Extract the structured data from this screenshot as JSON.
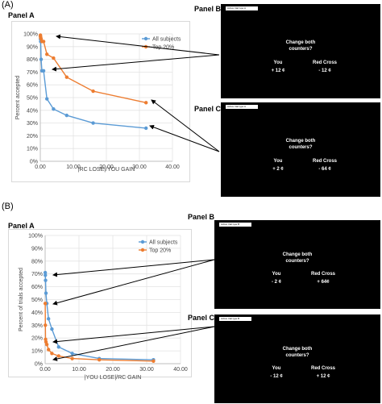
{
  "sections": [
    {
      "label": "(A)",
      "panel_a_label": "Panel A",
      "panel_b_label": "Panel B",
      "panel_c_label": "Panel C",
      "screen_b": {
        "tab": "Active trial type A",
        "question_line1": "Change both",
        "question_line2": "counters?",
        "left_name": "You",
        "right_name": "Red Cross",
        "left_value": "+ 12 ¢",
        "right_value": "- 12 ¢"
      },
      "screen_c": {
        "tab": "Active trial type A",
        "question_line1": "Change both",
        "question_line2": "counters?",
        "left_name": "You",
        "right_name": "Red Cross",
        "left_value": "+ 2 ¢",
        "right_value": "- 64 ¢"
      }
    },
    {
      "label": "(B)",
      "panel_a_label": "Panel A",
      "panel_b_label": "Panel B",
      "panel_c_label": "Panel C",
      "screen_b": {
        "tab": "Active trial type B",
        "question_line1": "Change both",
        "question_line2": "counters?",
        "left_name": "You",
        "right_name": "Red Cross",
        "left_value": "- 2 ¢",
        "right_value": "+ 64¢"
      },
      "screen_c": {
        "tab": "Active trial type B",
        "question_line1": "Change both",
        "question_line2": "counters?",
        "left_name": "You",
        "right_name": "Red Cross",
        "left_value": "- 12 ¢",
        "right_value": "+ 12 ¢"
      }
    }
  ],
  "chart_data": [
    {
      "type": "line",
      "title": "",
      "xlabel": "|RC LOSE|/YOU GAIN",
      "ylabel": "Percent accepted",
      "xlim": [
        0,
        40
      ],
      "ylim": [
        0,
        1
      ],
      "x_ticks": [
        "0.00",
        "10.00",
        "20.00",
        "30.00",
        "40.00"
      ],
      "y_ticks": [
        "0%",
        "10%",
        "20%",
        "30%",
        "40%",
        "50%",
        "60%",
        "70%",
        "80%",
        "90%",
        "100%"
      ],
      "legend_position": "top-right",
      "series": [
        {
          "name": "All subjects",
          "color": "#5b9bd5",
          "x": [
            0.03,
            0.06,
            0.125,
            0.25,
            0.5,
            1,
            2,
            4,
            8,
            16,
            32
          ],
          "y": [
            0.98,
            0.96,
            0.94,
            0.8,
            0.71,
            0.71,
            0.49,
            0.41,
            0.36,
            0.3,
            0.26
          ]
        },
        {
          "name": "Top 20%",
          "color": "#ed7d31",
          "x": [
            0.03,
            0.06,
            0.125,
            0.25,
            0.5,
            1,
            2,
            4,
            8,
            16,
            32
          ],
          "y": [
            0.99,
            0.98,
            0.97,
            0.96,
            0.94,
            0.94,
            0.84,
            0.81,
            0.66,
            0.55,
            0.46
          ]
        }
      ]
    },
    {
      "type": "line",
      "title": "",
      "xlabel": "|YOU LOSE|/RC GAIN",
      "ylabel": "Percent of trials accepted",
      "xlim": [
        0,
        40
      ],
      "ylim": [
        0,
        1
      ],
      "x_ticks": [
        "0.00",
        "10.00",
        "20.00",
        "30.00",
        "40.00"
      ],
      "y_ticks": [
        "0%",
        "10%",
        "20%",
        "30%",
        "40%",
        "50%",
        "60%",
        "70%",
        "80%",
        "90%",
        "100%"
      ],
      "legend_position": "top-right",
      "series": [
        {
          "name": "All subjects",
          "color": "#5b9bd5",
          "x": [
            0.03,
            0.06,
            0.125,
            0.25,
            0.5,
            1,
            2,
            4,
            8,
            16,
            32
          ],
          "y": [
            0.71,
            0.69,
            0.65,
            0.55,
            0.47,
            0.35,
            0.27,
            0.13,
            0.08,
            0.04,
            0.03
          ]
        },
        {
          "name": "Top 20%",
          "color": "#ed7d31",
          "x": [
            0.03,
            0.06,
            0.125,
            0.25,
            0.5,
            1,
            2,
            4,
            8,
            16,
            32
          ],
          "y": [
            0.47,
            0.3,
            0.19,
            0.17,
            0.15,
            0.11,
            0.08,
            0.06,
            0.04,
            0.03,
            0.02
          ]
        }
      ]
    }
  ]
}
